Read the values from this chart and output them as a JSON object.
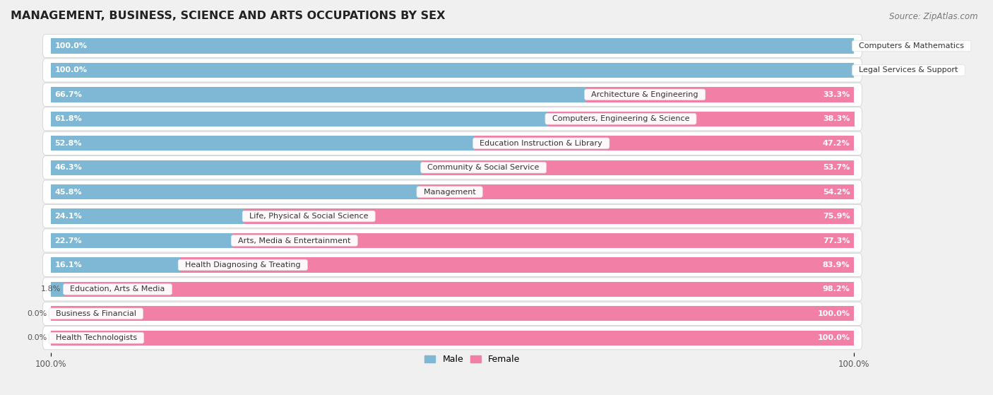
{
  "title": "MANAGEMENT, BUSINESS, SCIENCE AND ARTS OCCUPATIONS BY SEX",
  "source": "Source: ZipAtlas.com",
  "categories": [
    "Computers & Mathematics",
    "Legal Services & Support",
    "Architecture & Engineering",
    "Computers, Engineering & Science",
    "Education Instruction & Library",
    "Community & Social Service",
    "Management",
    "Life, Physical & Social Science",
    "Arts, Media & Entertainment",
    "Health Diagnosing & Treating",
    "Education, Arts & Media",
    "Business & Financial",
    "Health Technologists"
  ],
  "male": [
    100.0,
    100.0,
    66.7,
    61.8,
    52.8,
    46.3,
    45.8,
    24.1,
    22.7,
    16.1,
    1.8,
    0.0,
    0.0
  ],
  "female": [
    0.0,
    0.0,
    33.3,
    38.3,
    47.2,
    53.7,
    54.2,
    75.9,
    77.3,
    83.9,
    98.2,
    100.0,
    100.0
  ],
  "male_color": "#7eb8d4",
  "female_color": "#f17fa6",
  "male_color_light": "#b8d9eb",
  "female_color_light": "#f8c0d2",
  "male_label": "Male",
  "female_label": "Female",
  "bg_color": "#f0f0f0",
  "row_bg_color": "#ffffff",
  "title_fontsize": 11.5,
  "source_fontsize": 8.5,
  "label_fontsize": 8,
  "bar_label_fontsize": 8,
  "tick_fontsize": 8.5,
  "bar_height": 0.62
}
